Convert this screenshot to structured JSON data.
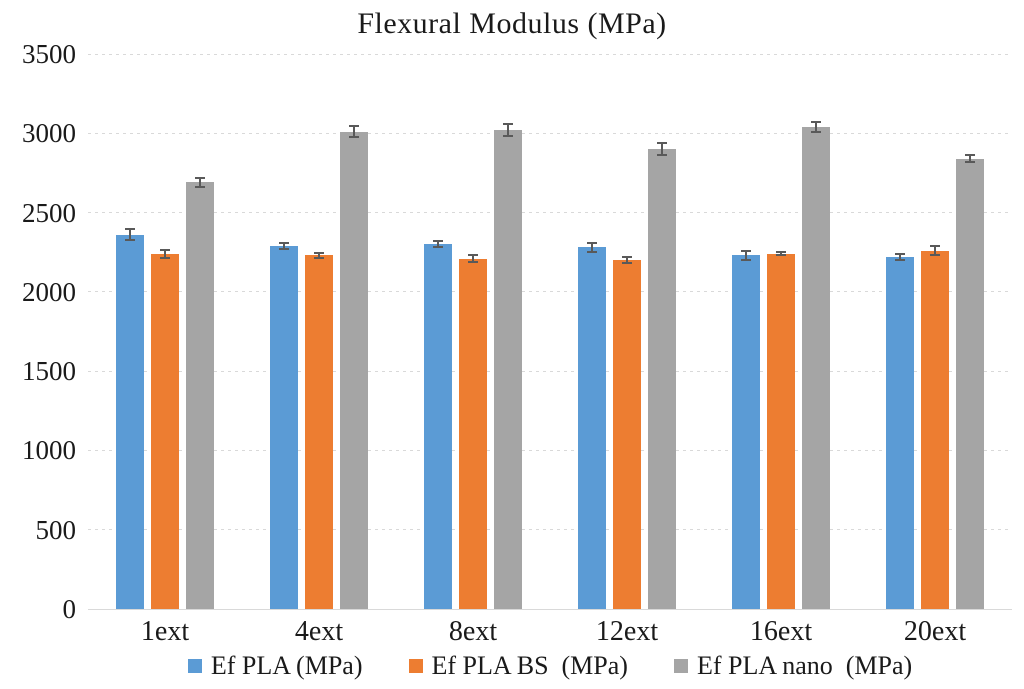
{
  "chart_data": {
    "type": "bar",
    "title": "Flexural Modulus (MPa)",
    "categories": [
      "1ext",
      "4ext",
      "8ext",
      "12ext",
      "16ext",
      "20ext"
    ],
    "series": [
      {
        "name": "Ef PLA (MPa)",
        "color": "#5B9BD5",
        "values": [
          2360,
          2290,
          2300,
          2280,
          2230,
          2220
        ],
        "errors": [
          40,
          25,
          25,
          35,
          35,
          25
        ]
      },
      {
        "name": "Ef PLA BS  (MPa)",
        "color": "#ED7D31",
        "values": [
          2240,
          2230,
          2210,
          2200,
          2240,
          2260
        ],
        "errors": [
          30,
          20,
          30,
          25,
          15,
          35
        ]
      },
      {
        "name": "Ef PLA nano  (MPa)",
        "color": "#A5A5A5",
        "values": [
          2690,
          3010,
          3020,
          2900,
          3040,
          2840
        ],
        "errors": [
          35,
          40,
          45,
          45,
          40,
          30
        ]
      }
    ],
    "xlabel": "",
    "ylabel": "",
    "ylim": [
      0,
      3500
    ],
    "yticks": [
      0,
      500,
      1000,
      1500,
      2000,
      2500,
      3000,
      3500
    ],
    "grid": "horizontal-dotted",
    "legend_position": "bottom",
    "error_bars": true,
    "colors": {
      "grid": "#D9D9D9",
      "axis_line": "#D9D9D9",
      "text": "#1A1A1A",
      "error_bar": "#595959"
    }
  }
}
